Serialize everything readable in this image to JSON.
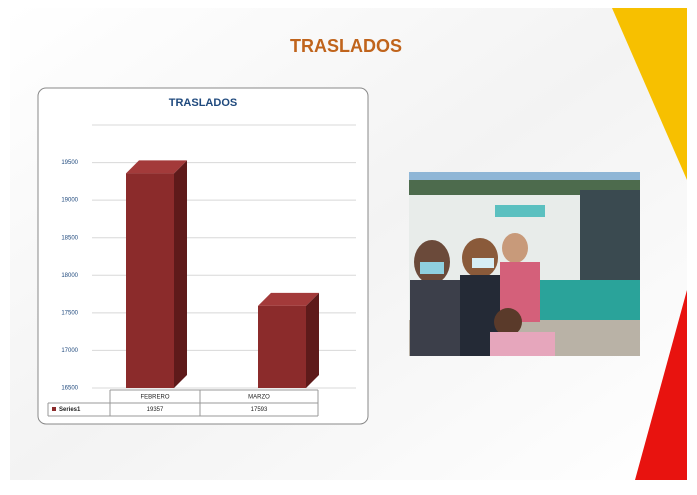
{
  "slide_title": "TRASLADOS",
  "chart_data": {
    "type": "bar",
    "title": "TRASLADOS",
    "categories": [
      "FEBRERO",
      "MARZO"
    ],
    "series": [
      {
        "name": "Series1",
        "color": "#8b2b2b",
        "values": [
          19357,
          17593
        ]
      }
    ],
    "ylim": [
      16500,
      20000
    ],
    "yticks": [
      16500,
      17000,
      17500,
      18000,
      18500,
      19000,
      19500
    ],
    "grid": true
  }
}
